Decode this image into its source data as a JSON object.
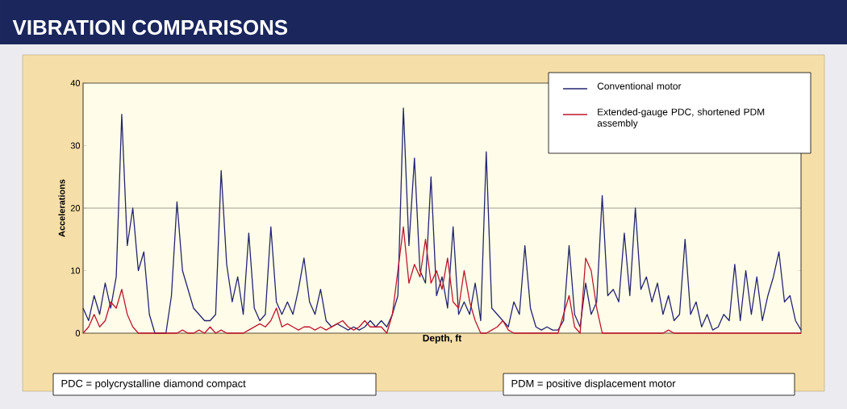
{
  "chart_data": {
    "type": "line",
    "title": "VIBRATION COMPARISONS",
    "xlabel": "Depth, ft",
    "ylabel": "Accelerations",
    "categories": [
      null,
      null,
      null,
      null,
      null,
      null,
      null,
      null,
      null,
      null,
      null,
      null,
      null,
      null,
      null,
      null,
      null,
      null,
      null,
      null,
      null,
      null,
      null,
      null,
      null,
      null,
      null,
      null,
      null,
      null,
      null,
      null,
      null,
      null,
      null,
      null,
      null,
      null,
      null,
      null,
      null,
      null,
      null,
      null,
      null,
      null,
      null,
      null,
      null,
      null,
      null,
      null,
      null,
      null,
      null,
      null,
      null,
      null,
      null,
      null,
      null,
      null,
      null,
      null,
      null,
      null,
      null,
      null,
      null,
      null,
      null,
      null,
      null,
      null,
      null,
      null,
      null,
      null,
      null,
      null,
      null,
      null,
      null,
      null,
      null,
      null,
      null,
      null,
      null,
      null,
      null,
      null,
      null,
      null,
      null,
      null,
      null,
      null,
      null,
      null,
      null,
      null,
      null,
      null,
      null,
      null,
      null,
      null,
      null,
      null,
      null,
      null,
      null,
      null,
      null,
      null,
      null,
      null,
      null,
      null,
      null,
      null,
      null,
      null,
      null,
      null,
      null,
      null,
      null,
      null,
      null
    ],
    "series": [
      {
        "name": "Conventional motor",
        "color": "#23246e",
        "values": [
          4,
          2,
          6,
          3,
          8,
          4,
          9,
          35,
          14,
          20,
          10,
          13,
          3,
          0,
          0,
          0,
          6,
          21,
          10,
          7,
          4,
          3,
          2,
          2,
          3,
          26,
          11,
          5,
          9,
          3,
          16,
          4,
          2,
          3,
          17,
          5,
          3,
          5,
          3,
          7,
          12,
          5,
          3,
          7,
          2,
          1,
          1.5,
          1,
          0.5,
          1,
          0.5,
          1,
          2,
          1,
          2,
          1,
          3,
          6,
          36,
          14,
          28,
          10,
          8,
          25,
          6,
          9,
          4,
          17,
          3,
          5,
          3,
          8,
          2,
          29,
          4,
          3,
          2,
          1,
          5,
          3,
          14,
          4,
          1,
          0.5,
          1,
          0.5,
          0.5,
          2,
          14,
          3,
          1,
          8,
          3,
          5,
          22,
          6,
          7,
          5,
          16,
          6,
          20,
          7,
          9,
          5,
          8,
          3,
          6,
          2,
          3,
          15,
          3,
          5,
          1,
          3,
          0.5,
          1,
          3,
          2,
          11,
          2,
          10,
          3,
          9,
          2,
          6,
          9,
          13,
          5,
          6,
          2,
          0.5
        ]
      },
      {
        "name": "Extended-gauge PDC, shortened PDM assembly",
        "color": "#c0142c",
        "values": [
          0,
          1,
          3,
          1,
          2,
          5,
          4,
          7,
          3,
          1,
          0,
          0,
          0,
          0,
          0,
          0,
          0,
          0,
          0.5,
          0,
          0,
          0.5,
          0,
          1,
          0,
          0.5,
          0,
          0,
          0,
          0,
          0.5,
          1,
          1.5,
          1,
          2,
          4,
          1,
          1.5,
          1,
          0.5,
          1,
          1,
          0.5,
          1,
          0.5,
          1,
          1.5,
          2,
          1,
          0.5,
          1,
          2,
          1,
          1,
          1,
          0,
          3,
          10,
          17,
          8,
          11,
          9,
          15,
          8,
          10,
          7,
          12,
          5,
          4,
          10,
          5,
          2,
          0,
          0,
          0.5,
          1,
          2,
          0.5,
          0,
          0,
          0,
          0,
          0,
          0,
          0,
          0,
          0,
          3,
          6,
          1,
          0,
          12,
          10,
          4,
          0,
          0,
          0,
          0,
          0,
          0,
          0,
          0,
          0,
          0,
          0,
          0,
          0.5,
          0,
          0,
          0,
          0,
          0,
          0,
          0,
          0,
          0,
          0,
          0,
          0,
          0,
          0,
          0,
          0,
          0,
          0,
          0,
          0,
          0,
          0,
          0,
          0
        ]
      }
    ],
    "ylim": [
      0,
      40
    ],
    "yticks": [
      0,
      10,
      20,
      30,
      40
    ],
    "ref_lines": [
      {
        "axis": "y",
        "value": 20,
        "color": "#8a8a80"
      }
    ],
    "legend": "top right",
    "annotations": [
      "PDC = polycrystalline diamond compact",
      "PDM = positive displacement motor"
    ]
  }
}
